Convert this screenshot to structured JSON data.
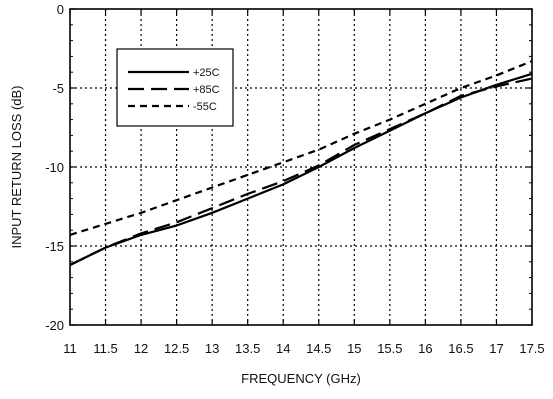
{
  "chart_data": {
    "type": "line",
    "title": "",
    "xlabel": "FREQUENCY (GHz)",
    "ylabel": "INPUT RETURN LOSS (dB)",
    "xlim": [
      11,
      17.5
    ],
    "ylim": [
      -20,
      0
    ],
    "x_ticks": [
      11,
      11.5,
      12,
      12.5,
      13,
      13.5,
      14,
      14.5,
      15,
      15.5,
      16,
      16.5,
      17,
      17.5
    ],
    "x_tick_labels": [
      "11",
      "11.5",
      "12",
      "12.5",
      "13",
      "13.5",
      "14",
      "14.5",
      "15",
      "15.5",
      "16",
      "16.5",
      "17",
      "17.5"
    ],
    "y_ticks": [
      0,
      -5,
      -10,
      -15,
      -20
    ],
    "y_tick_labels": [
      "0",
      "-5",
      "-10",
      "-15",
      "-20"
    ],
    "grid": true,
    "legend_position": "top-left",
    "series": [
      {
        "name": "+25C",
        "style": "solid",
        "color": "#000000",
        "x": [
          11,
          11.5,
          12,
          12.5,
          13,
          13.5,
          14,
          14.5,
          15,
          15.5,
          16,
          16.5,
          17,
          17.5
        ],
        "y": [
          -16.2,
          -15.1,
          -14.3,
          -13.7,
          -12.9,
          -12.0,
          -11.1,
          -10.0,
          -8.8,
          -7.7,
          -6.6,
          -5.6,
          -4.8,
          -4.1
        ]
      },
      {
        "name": "+85C",
        "style": "longdash",
        "color": "#000000",
        "x": [
          11,
          11.5,
          12,
          12.5,
          13,
          13.5,
          14,
          14.5,
          15,
          15.5,
          16,
          16.5,
          17,
          17.5
        ],
        "y": [
          -16.2,
          -15.1,
          -14.2,
          -13.5,
          -12.6,
          -11.7,
          -10.9,
          -9.9,
          -8.6,
          -7.6,
          -6.6,
          -5.5,
          -4.9,
          -4.4
        ]
      },
      {
        "name": "-55C",
        "style": "shortdash",
        "color": "#000000",
        "x": [
          11,
          11.5,
          12,
          12.5,
          13,
          13.5,
          14,
          14.5,
          15,
          15.5,
          16,
          16.5,
          17,
          17.5
        ],
        "y": [
          -14.3,
          -13.6,
          -12.9,
          -12.1,
          -11.3,
          -10.5,
          -9.7,
          -8.9,
          -7.9,
          -7.0,
          -6.0,
          -5.0,
          -4.2,
          -3.3
        ]
      }
    ]
  }
}
